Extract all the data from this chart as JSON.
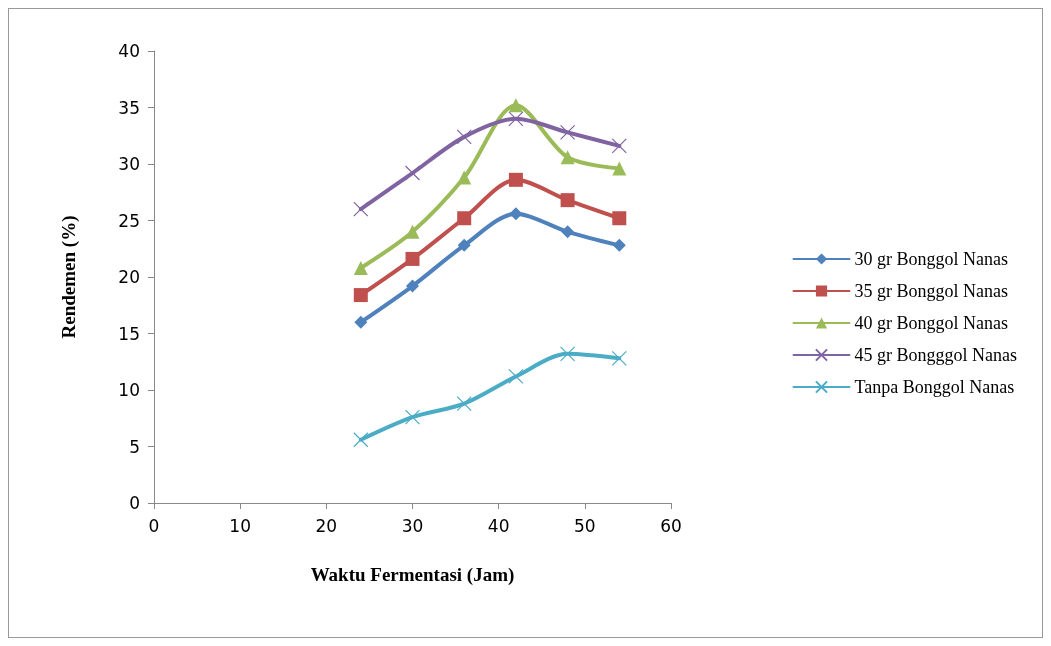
{
  "chart_data": {
    "type": "line",
    "xlabel": "Waktu Fermentasi (Jam)",
    "ylabel": "Rendemen (%)",
    "x": [
      24,
      30,
      36,
      42,
      48,
      54
    ],
    "series": [
      {
        "name": "30 gr Bonggol Nanas",
        "color": "#4f81bd",
        "marker": "diamond",
        "values": [
          16,
          19.2,
          22.8,
          25.6,
          24,
          22.8
        ]
      },
      {
        "name": "35 gr Bonggol Nanas",
        "color": "#c0504d",
        "marker": "square",
        "values": [
          18.4,
          21.6,
          25.2,
          28.6,
          26.8,
          25.2
        ]
      },
      {
        "name": "40 gr Bonggol Nanas",
        "color": "#9bbb59",
        "marker": "triangle",
        "values": [
          20.8,
          24,
          28.8,
          35.2,
          30.6,
          29.6
        ]
      },
      {
        "name": "45 gr Bongggol Nanas",
        "color": "#8064a2",
        "marker": "cross",
        "values": [
          26,
          29.2,
          32.4,
          34,
          32.8,
          31.6
        ]
      },
      {
        "name": "Tanpa Bonggol Nanas",
        "color": "#4bacc6",
        "marker": "cross",
        "values": [
          5.6,
          7.6,
          8.8,
          11.2,
          13.2,
          12.8
        ]
      }
    ],
    "xlim": [
      0,
      60
    ],
    "xticks": [
      0,
      10,
      20,
      30,
      40,
      50,
      60
    ],
    "ylim": [
      0,
      40
    ],
    "yticks": [
      0,
      5,
      10,
      15,
      20,
      25,
      30,
      35,
      40
    ],
    "grid": false,
    "legend": "right",
    "line_style": "solid"
  }
}
